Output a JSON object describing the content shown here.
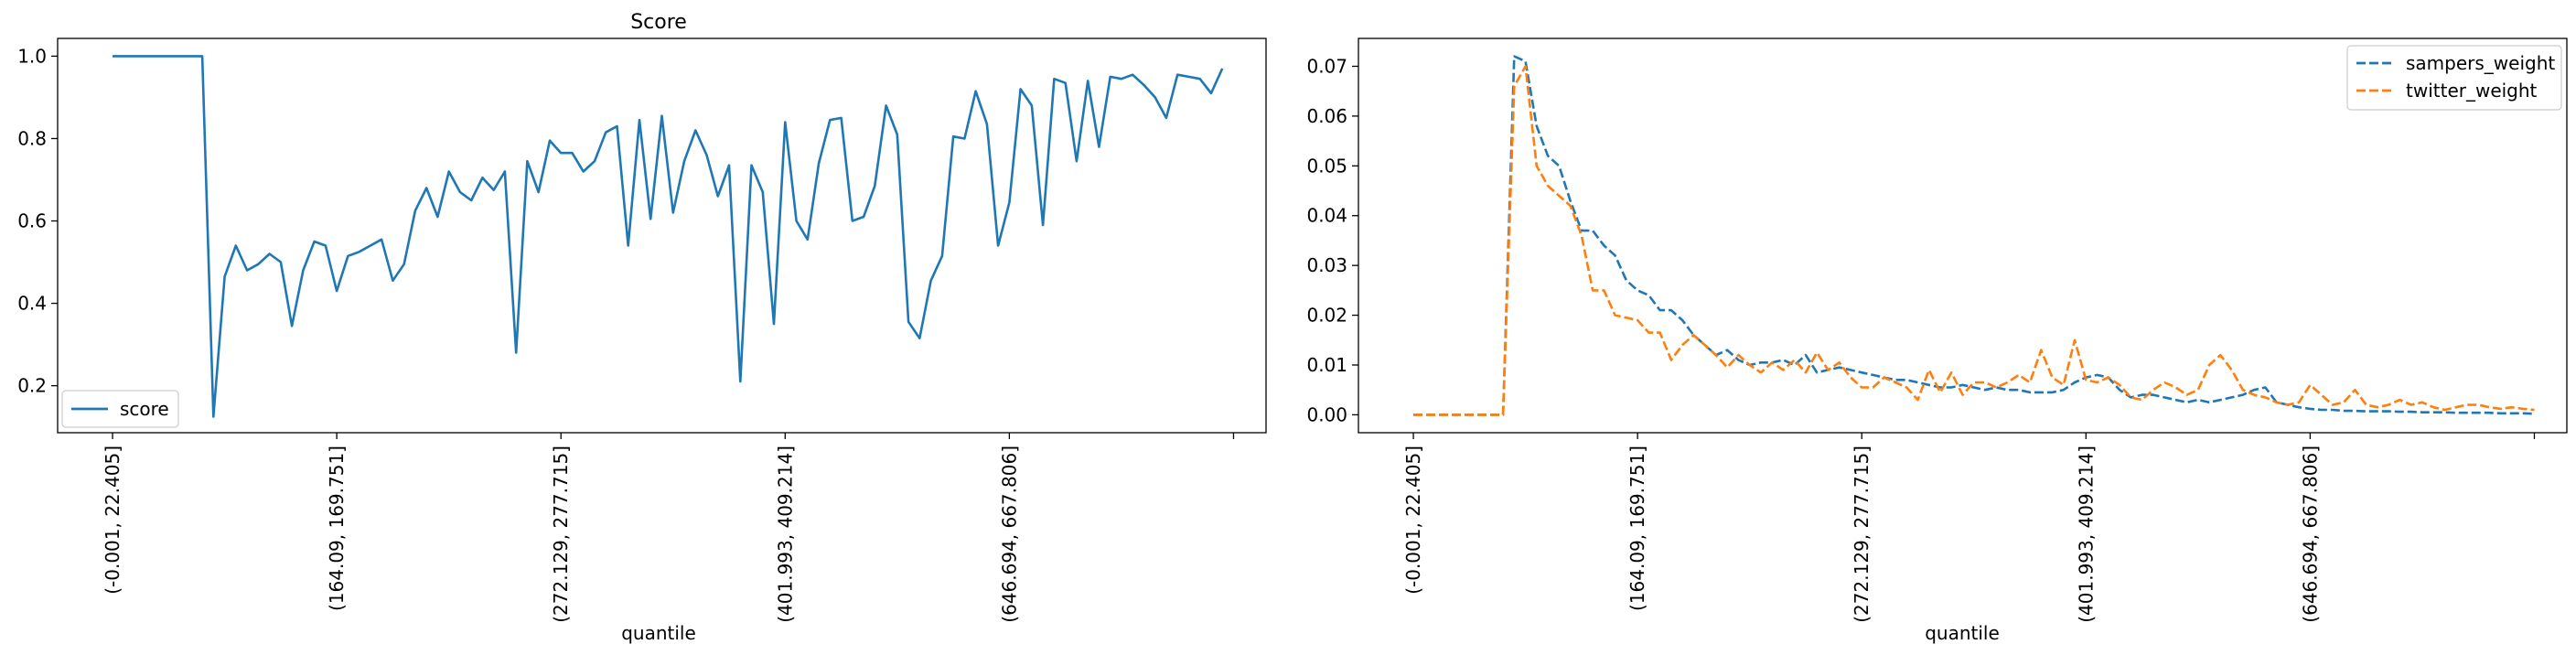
{
  "colors": {
    "series_blue": "#1f77b4",
    "series_orange": "#ff7f0e"
  },
  "chart_data": [
    {
      "type": "line",
      "title": "Score",
      "xlabel": "",
      "ylabel": "",
      "xlim": [
        -4.9,
        102.9
      ],
      "ylim": [
        0.0859,
        1.0431
      ],
      "yticks": [
        0.2,
        0.4,
        0.6,
        0.8,
        1.0
      ],
      "xticks": [
        0,
        20,
        40,
        60,
        80,
        100
      ],
      "xtick_labels": [
        "(-0.001, 22.405]",
        "(164.09, 169.751]",
        "(272.129, 277.715]",
        "(401.993, 409.214]",
        "(646.694, 667.806]",
        ""
      ],
      "legend": "lower left",
      "grid": false,
      "series": [
        {
          "name": "score",
          "color": "#1f77b4",
          "dash": "solid",
          "values": [
            1.0,
            1.0,
            1.0,
            1.0,
            1.0,
            1.0,
            1.0,
            1.0,
            1.0,
            0.125,
            0.465,
            0.54,
            0.48,
            0.495,
            0.52,
            0.5,
            0.345,
            0.48,
            0.55,
            0.54,
            0.43,
            0.515,
            0.525,
            0.54,
            0.555,
            0.455,
            0.495,
            0.625,
            0.68,
            0.61,
            0.72,
            0.67,
            0.65,
            0.705,
            0.675,
            0.72,
            0.28,
            0.745,
            0.67,
            0.795,
            0.765,
            0.765,
            0.72,
            0.745,
            0.815,
            0.83,
            0.54,
            0.845,
            0.605,
            0.855,
            0.62,
            0.745,
            0.82,
            0.76,
            0.66,
            0.735,
            0.21,
            0.735,
            0.67,
            0.35,
            0.84,
            0.6,
            0.555,
            0.74,
            0.845,
            0.85,
            0.6,
            0.61,
            0.685,
            0.88,
            0.81,
            0.355,
            0.315,
            0.455,
            0.515,
            0.805,
            0.8,
            0.915,
            0.835,
            0.54,
            0.645,
            0.92,
            0.88,
            0.59,
            0.945,
            0.935,
            0.745,
            0.94,
            0.78,
            0.95,
            0.945,
            0.955,
            0.93,
            0.9,
            0.85,
            0.955,
            0.95,
            0.945,
            0.91,
            0.97
          ]
        }
      ]
    },
    {
      "type": "line",
      "title": "",
      "xlabel": "quantile",
      "ylabel": "",
      "xlim": [
        -4.9,
        102.9
      ],
      "ylim": [
        -0.0036,
        0.0756
      ],
      "yticks": [
        0.0,
        0.01,
        0.02,
        0.03,
        0.04,
        0.05,
        0.06,
        0.07
      ],
      "ytick_labels": [
        "0.00",
        "0.01",
        "0.02",
        "0.03",
        "0.04",
        "0.05",
        "0.06",
        "0.07"
      ],
      "xticks": [
        0,
        20,
        40,
        60,
        80,
        100
      ],
      "xtick_labels": [
        "(-0.001, 22.405]",
        "(164.09, 169.751]",
        "(272.129, 277.715]",
        "(401.993, 409.214]",
        "(646.694, 667.806]",
        ""
      ],
      "legend": "upper right",
      "grid": false,
      "series": [
        {
          "name": "sampers_weight",
          "color": "#1f77b4",
          "dash": "dashed",
          "values": [
            0,
            0,
            0,
            0,
            0,
            0,
            0,
            0,
            0,
            0.072,
            0.071,
            0.058,
            0.052,
            0.05,
            0.043,
            0.037,
            0.037,
            0.034,
            0.032,
            0.027,
            0.025,
            0.024,
            0.021,
            0.021,
            0.019,
            0.016,
            0.014,
            0.012,
            0.013,
            0.011,
            0.01,
            0.0105,
            0.0105,
            0.011,
            0.01,
            0.012,
            0.0085,
            0.009,
            0.0095,
            0.009,
            0.0085,
            0.008,
            0.0075,
            0.007,
            0.007,
            0.0065,
            0.006,
            0.0055,
            0.0055,
            0.006,
            0.0055,
            0.005,
            0.0055,
            0.005,
            0.005,
            0.0045,
            0.0045,
            0.0045,
            0.005,
            0.0065,
            0.0075,
            0.008,
            0.0075,
            0.005,
            0.0035,
            0.004,
            0.004,
            0.0035,
            0.003,
            0.0025,
            0.003,
            0.0025,
            0.003,
            0.0035,
            0.004,
            0.005,
            0.0055,
            0.0025,
            0.002,
            0.0015,
            0.0012,
            0.001,
            0.001,
            0.0008,
            0.0008,
            0.0007,
            0.0007,
            0.0007,
            0.0006,
            0.0006,
            0.0005,
            0.0005,
            0.0005,
            0.0004,
            0.0004,
            0.0004,
            0.0004,
            0.0003,
            0.0003,
            0.0003,
            0.0002
          ]
        },
        {
          "name": "twitter_weight",
          "color": "#ff7f0e",
          "dash": "dashed",
          "values": [
            0,
            0,
            0,
            0,
            0,
            0,
            0,
            0,
            0,
            0.066,
            0.07,
            0.05,
            0.046,
            0.044,
            0.042,
            0.036,
            0.025,
            0.025,
            0.02,
            0.0195,
            0.019,
            0.0165,
            0.0165,
            0.011,
            0.014,
            0.016,
            0.014,
            0.012,
            0.0095,
            0.012,
            0.01,
            0.0085,
            0.0105,
            0.009,
            0.011,
            0.0085,
            0.0125,
            0.009,
            0.0105,
            0.0075,
            0.0055,
            0.0055,
            0.0075,
            0.0065,
            0.0055,
            0.003,
            0.009,
            0.0045,
            0.0085,
            0.004,
            0.0065,
            0.0065,
            0.0055,
            0.0065,
            0.008,
            0.0065,
            0.013,
            0.0075,
            0.006,
            0.015,
            0.007,
            0.0065,
            0.0075,
            0.006,
            0.0035,
            0.003,
            0.005,
            0.0065,
            0.0055,
            0.004,
            0.005,
            0.01,
            0.012,
            0.009,
            0.005,
            0.004,
            0.0035,
            0.0025,
            0.002,
            0.0025,
            0.006,
            0.004,
            0.002,
            0.0025,
            0.005,
            0.002,
            0.0015,
            0.002,
            0.003,
            0.002,
            0.0025,
            0.0015,
            0.001,
            0.0015,
            0.002,
            0.002,
            0.0015,
            0.0012,
            0.0015,
            0.0012,
            0.001
          ]
        }
      ]
    }
  ]
}
